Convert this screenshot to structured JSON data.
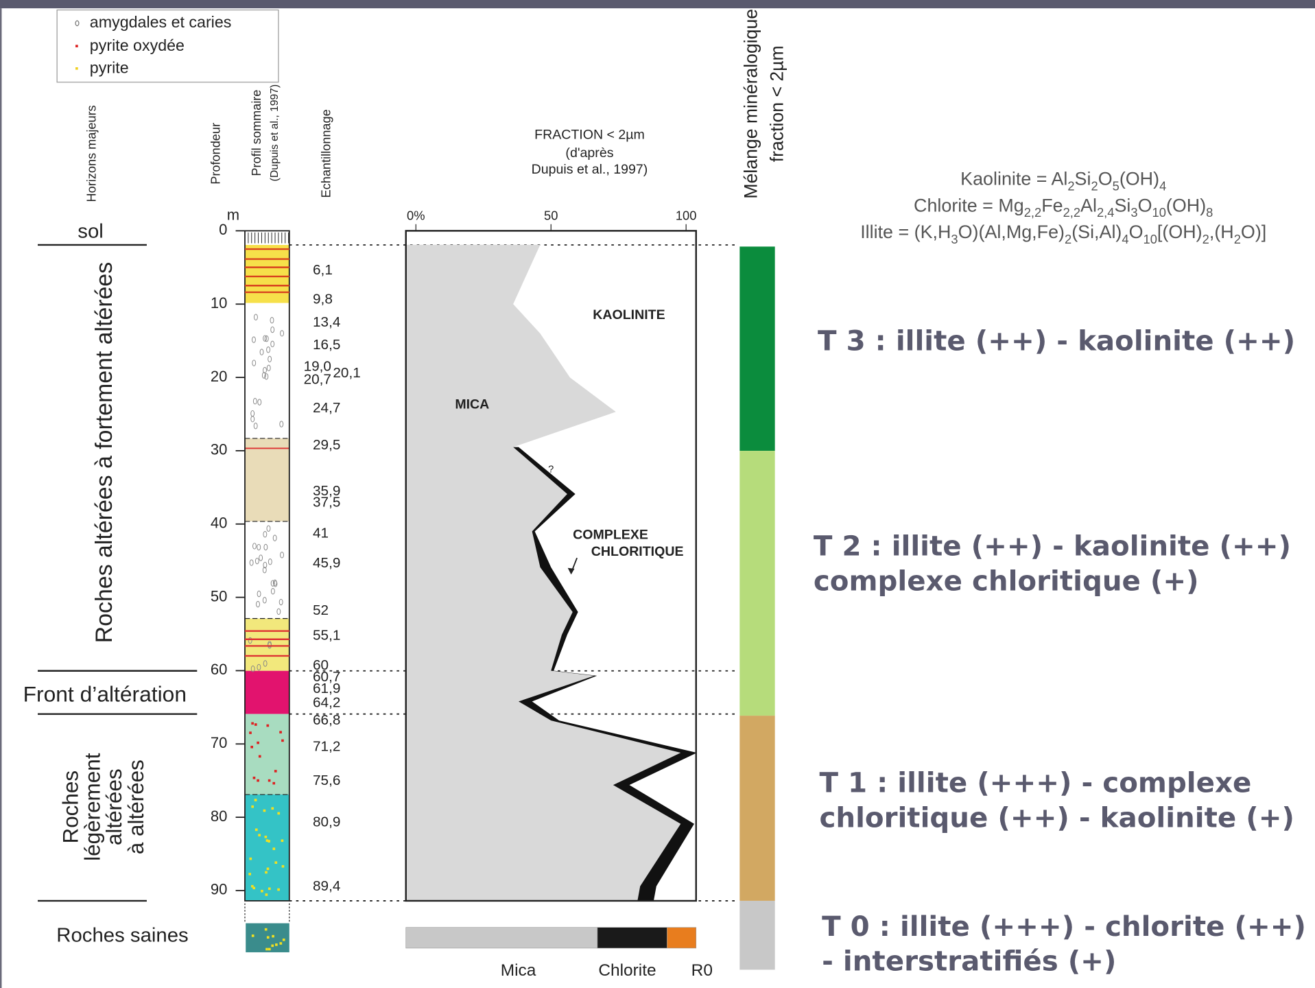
{
  "legend": [
    "amygdales et caries",
    "pyrite oxydée",
    "pyrite"
  ],
  "column_headers": {
    "horizons": "Horizons majeurs",
    "depth": "Profondeur",
    "profile": [
      "Profil sommaire",
      "(Dupuis et al., 1997)"
    ],
    "sampling": "Echantillonnage"
  },
  "horizons": {
    "soil": "sol",
    "strongly_altered": "Roches altérées à fortement altérées",
    "front": "Front d’altération",
    "slightly_altered": [
      "Roches",
      "légèrement",
      "altérées",
      "à altérées"
    ],
    "sound": "Roches saines"
  },
  "depth_axis": {
    "unit": "m",
    "lim": [
      0,
      91.4
    ],
    "ticks": [
      0,
      10,
      20,
      30,
      40,
      50,
      60,
      70,
      80,
      90
    ]
  },
  "samples": [
    "6,1",
    "9,8",
    "13,4",
    "16,5",
    "19,0",
    "20,1",
    "20,7",
    "24,7",
    "29,5",
    "35,9",
    "37,5",
    "41",
    "45,9",
    "52",
    "55,1",
    "60",
    "60,7",
    "61,9",
    "64,2",
    "66,8",
    "71,2",
    "75,6",
    "80,9",
    "89,4"
  ],
  "fraction_chart": {
    "title": [
      "FRACTION < 2µm",
      "(d'après",
      "Dupuis et al., 1997)"
    ],
    "xlim": [
      -3.7,
      103.7
    ],
    "xticks": [
      {
        "value": 0,
        "label": "0%"
      },
      50,
      100
    ],
    "labels": {
      "kaolinite": "KAOLINITE",
      "mica": "MICA",
      "complex": [
        "COMPLEXE",
        "CHLORITIQUE"
      ],
      "question": "?"
    },
    "depth": [
      1.9,
      10,
      14,
      20,
      24.7,
      29.5,
      35.9,
      41,
      45.9,
      52,
      55.1,
      60,
      60.7,
      64.2,
      66.8,
      71.2,
      75.6,
      80.9,
      89.4,
      91.4
    ],
    "mica": [
      46,
      36,
      46,
      57,
      74,
      36,
      56,
      43,
      46,
      58,
      54,
      50,
      66,
      38,
      50,
      98,
      73,
      98,
      83,
      82
    ],
    "chlorite": [
      null,
      null,
      null,
      null,
      null,
      2,
      3,
      1,
      4,
      2,
      2,
      1,
      1,
      5,
      3,
      6,
      6,
      5,
      6,
      6
    ]
  },
  "composition": {
    "names": [
      "Mica",
      "Chlorite",
      "R0"
    ],
    "values": [
      66,
      24,
      10
    ],
    "colors": [
      "#c8c8c8",
      "#1a1a1a",
      "#e87d1e"
    ]
  },
  "mixture_header": [
    "Mélange minéralogique",
    "fraction < 2µm"
  ],
  "formulas": [
    [
      "Kaolinite = Al",
      "2",
      "Si",
      "2",
      "O",
      "5",
      "(OH)",
      "4"
    ],
    [
      "Chlorite = Mg",
      "2,2",
      "Fe",
      "2,2",
      "Al",
      "2,4",
      "Si",
      "3",
      "O",
      "10",
      "(OH)",
      "8"
    ],
    [
      "Illite = (K,H",
      "3",
      "O)(Al,Mg,Fe)",
      "2",
      "(Si,Al)",
      "4",
      "O",
      "10",
      "[(OH)",
      "2",
      ",(H",
      "2",
      "O)]"
    ]
  ],
  "tiers": [
    [
      "T 3 : illite (++) - kaolinite (++)"
    ],
    [
      "T 2 : illite (++) - kaolinite (++)",
      "complexe chloritique (+)"
    ],
    [
      "T 1 : illite (+++) - complexe",
      "chloritique (++) - kaolinite (+)"
    ],
    [
      "T 0 : illite (+++) - chlorite (++)",
      "- interstratifiés (+)"
    ]
  ]
}
